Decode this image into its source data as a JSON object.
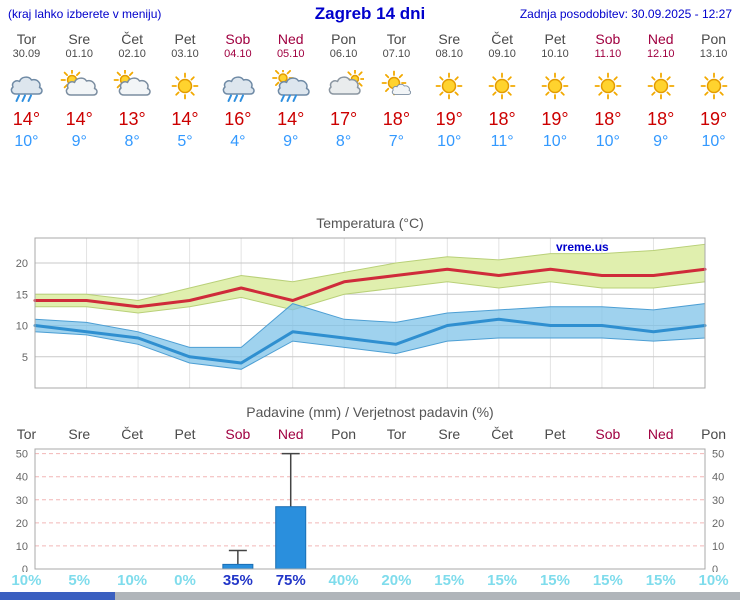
{
  "header": {
    "hint": "(kraj lahko izberete v meniju)",
    "title": "Zagreb 14 dni",
    "updated": "Zadnja posodobitev: 30.09.2025 - 12:27"
  },
  "colors": {
    "header_blue": "#0000cc",
    "weekday": "#4a4a4a",
    "weekend": "#a00040",
    "tmax": "#cc0000",
    "tmin": "#3399ff",
    "prob_low": "#7fdcec",
    "prob_high": "#2236c8",
    "footer_blue": "#3a5fc0",
    "footer_gray": "#b0b5ba"
  },
  "days": [
    {
      "name": "Tor",
      "date": "30.09",
      "weekend": false,
      "icon": "rain",
      "tmax": "14°",
      "tmin": "10°"
    },
    {
      "name": "Sre",
      "date": "01.10",
      "weekend": false,
      "icon": "partly-cloudy",
      "tmax": "14°",
      "tmin": "9°"
    },
    {
      "name": "Čet",
      "date": "02.10",
      "weekend": false,
      "icon": "partly-cloudy",
      "tmax": "13°",
      "tmin": "8°"
    },
    {
      "name": "Pet",
      "date": "03.10",
      "weekend": false,
      "icon": "sunny",
      "tmax": "14°",
      "tmin": "5°"
    },
    {
      "name": "Sob",
      "date": "04.10",
      "weekend": true,
      "icon": "rain",
      "tmax": "16°",
      "tmin": "4°"
    },
    {
      "name": "Ned",
      "date": "05.10",
      "weekend": true,
      "icon": "showers",
      "tmax": "14°",
      "tmin": "9°"
    },
    {
      "name": "Pon",
      "date": "06.10",
      "weekend": false,
      "icon": "cloudy",
      "tmax": "17°",
      "tmin": "8°"
    },
    {
      "name": "Tor",
      "date": "07.10",
      "weekend": false,
      "icon": "partly-sunny",
      "tmax": "18°",
      "tmin": "7°"
    },
    {
      "name": "Sre",
      "date": "08.10",
      "weekend": false,
      "icon": "sunny",
      "tmax": "19°",
      "tmin": "10°"
    },
    {
      "name": "Čet",
      "date": "09.10",
      "weekend": false,
      "icon": "sunny",
      "tmax": "18°",
      "tmin": "11°"
    },
    {
      "name": "Pet",
      "date": "10.10",
      "weekend": false,
      "icon": "sunny",
      "tmax": "19°",
      "tmin": "10°"
    },
    {
      "name": "Sob",
      "date": "11.10",
      "weekend": true,
      "icon": "sunny",
      "tmax": "18°",
      "tmin": "10°"
    },
    {
      "name": "Ned",
      "date": "12.10",
      "weekend": true,
      "icon": "sunny",
      "tmax": "18°",
      "tmin": "9°"
    },
    {
      "name": "Pon",
      "date": "13.10",
      "weekend": false,
      "icon": "sunny",
      "tmax": "19°",
      "tmin": "10°"
    }
  ],
  "chart_data": [
    {
      "type": "line",
      "title": "Temperatura (°C)",
      "watermark": "vreme.us",
      "ylim": [
        0,
        24
      ],
      "yticks": [
        5,
        10,
        15,
        20
      ],
      "grid": true,
      "legend": "none",
      "categories": [
        "Tor",
        "Sre",
        "Čet",
        "Pet",
        "Sob",
        "Ned",
        "Pon",
        "Tor",
        "Sre",
        "Čet",
        "Pet",
        "Sob",
        "Ned",
        "Pon"
      ],
      "series": [
        {
          "name": "max temperature",
          "color": "#cf2b3a",
          "values": [
            14,
            14,
            13,
            14,
            16,
            14,
            17,
            18,
            19,
            18,
            19,
            18,
            18,
            19
          ]
        },
        {
          "name": "min temperature",
          "color": "#2f8fd0",
          "values": [
            10,
            9,
            8,
            5,
            4,
            9,
            8,
            7,
            10,
            11,
            10,
            10,
            9,
            10
          ]
        }
      ],
      "bands": [
        {
          "name": "max range",
          "color": "#e0efae",
          "edge": "#b9d078",
          "opacity": 1,
          "hi": [
            15,
            15,
            14,
            16,
            18,
            17,
            18.5,
            20,
            21,
            20.5,
            21.5,
            21.5,
            22,
            23
          ],
          "lo": [
            13,
            13,
            12,
            13,
            14.5,
            12.5,
            15,
            16,
            17,
            16,
            17,
            16,
            16,
            17
          ]
        },
        {
          "name": "min range",
          "color": "#7fc3e8",
          "edge": "#4d9fd4",
          "opacity": 0.75,
          "hi": [
            11,
            10.5,
            9,
            6.5,
            6.5,
            13.5,
            11,
            10.5,
            12,
            12.5,
            13,
            13,
            12.5,
            13.5
          ],
          "lo": [
            9,
            8.5,
            7,
            4,
            3,
            7.5,
            6.5,
            5.5,
            7.5,
            8,
            8,
            8,
            7.5,
            8
          ]
        }
      ]
    },
    {
      "type": "bar",
      "title": "Padavine (mm) / Verjetnost padavin (%)",
      "categories": [
        "Tor",
        "Sre",
        "Čet",
        "Pet",
        "Sob",
        "Ned",
        "Pon",
        "Tor",
        "Sre",
        "Čet",
        "Pet",
        "Sob",
        "Ned",
        "Pon"
      ],
      "values": [
        0,
        0,
        0,
        0,
        2,
        27,
        0,
        0,
        0,
        0,
        0,
        0,
        0,
        0
      ],
      "range_max": [
        0,
        0,
        0,
        0,
        8,
        50,
        0,
        0,
        0,
        0,
        0,
        0,
        0,
        0
      ],
      "probabilities": [
        "10%",
        "5%",
        "10%",
        "0%",
        "35%",
        "75%",
        "40%",
        "20%",
        "15%",
        "15%",
        "15%",
        "15%",
        "15%",
        "10%"
      ],
      "prob_highlight": [
        false,
        false,
        false,
        false,
        true,
        true,
        false,
        false,
        false,
        false,
        false,
        false,
        false,
        false
      ],
      "ylim": [
        0,
        52
      ],
      "yticks": [
        0,
        10,
        20,
        30,
        40,
        50
      ],
      "bar_color": "#2a8fdd",
      "bar_edge": "#1a6fb5",
      "whisker_color": "#444444",
      "grid_color": "#f2b6b6"
    }
  ]
}
